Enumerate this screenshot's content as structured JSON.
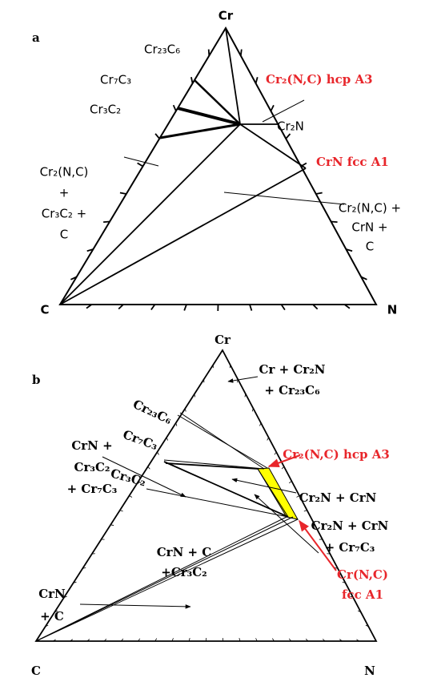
{
  "panels": [
    {
      "letter": "a",
      "vertices": [
        "Cr",
        "C",
        "N"
      ],
      "labels": [
        {
          "lines": [
            "Cr₂₃C₆"
          ]
        },
        {
          "lines": [
            "Cr₇C₃"
          ]
        },
        {
          "lines": [
            "Cr₃C₂"
          ]
        },
        {
          "lines": [
            "Cr₂(N,C) hcp A3"
          ],
          "color": "#e8262b"
        },
        {
          "lines": [
            "Cr₂N"
          ]
        },
        {
          "lines": [
            "CrN fcc A1"
          ],
          "color": "#e8262b"
        },
        {
          "lines": [
            "Cr₂(N,C)",
            "+",
            "Cr₃C₂ +",
            "C"
          ]
        },
        {
          "lines": [
            "Cr₂(N,C) +",
            "CrN +",
            "C"
          ]
        }
      ]
    },
    {
      "letter": "b",
      "vertices": [
        "Cr",
        "C",
        "N"
      ],
      "labels": [
        {
          "lines": [
            "Cr + Cr₂N",
            "+ Cr₂₃C₆"
          ]
        },
        {
          "lines": [
            "Cr₂₃C₆"
          ]
        },
        {
          "lines": [
            "Cr₇C₃"
          ]
        },
        {
          "lines": [
            "Cr₃C₂"
          ]
        },
        {
          "lines": [
            "CrN +",
            "Cr₃C₂",
            "+ Cr₇C₃"
          ]
        },
        {
          "lines": [
            "Cr₂(N,C) hcp A3"
          ],
          "color": "#e8262b"
        },
        {
          "lines": [
            "Cr₂N + CrN"
          ]
        },
        {
          "lines": [
            "Cr₂N + CrN",
            "+ Cr₇C₃"
          ]
        },
        {
          "lines": [
            "Cr(N,C)",
            "fcc A1"
          ],
          "color": "#e8262b"
        },
        {
          "lines": [
            "CrN + C",
            "+Cr₃C₂"
          ]
        },
        {
          "lines": [
            "CrN",
            "+ C"
          ]
        }
      ]
    }
  ]
}
